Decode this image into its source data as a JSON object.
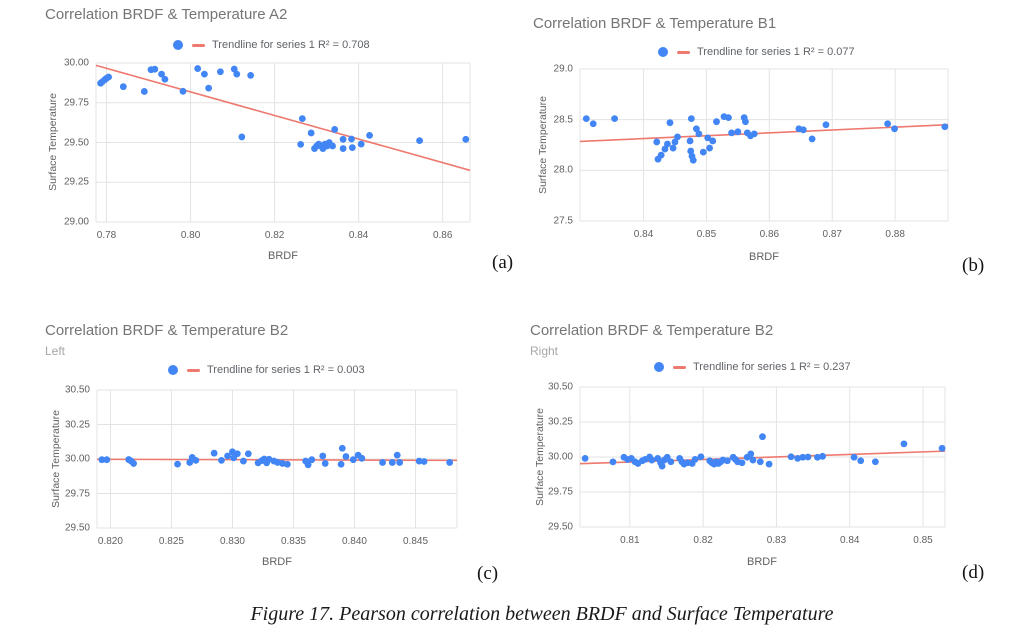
{
  "caption": "Figure 17. Pearson correlation between BRDF and Surface Temperature",
  "colors": {
    "point": "#4285f4",
    "trendline": "#ee796f",
    "grid": "#e3e3e3",
    "tick_text": "#616161",
    "title_text": "#757575",
    "subtitle_text": "#a6a6a6",
    "legend_text": "#5f6368",
    "caption_text": "#1a1a1a",
    "background": "#ffffff"
  },
  "chart_data": [
    {
      "type": "scatter",
      "panel_label": "(a)",
      "title": "Correlation BRDF & Temperature A2",
      "subtitle": "",
      "legend_label": "Trendline for series 1 R² = 0.708",
      "r2": 0.708,
      "xlabel": "BRDF",
      "ylabel": "Surface Temperature",
      "xlim": [
        0.7775,
        0.8665
      ],
      "ylim": [
        29.0,
        30.0
      ],
      "xtick_values": [
        0.78,
        0.8,
        0.82,
        0.84,
        0.86
      ],
      "xtick_labels": [
        "0.78",
        "0.80",
        "0.82",
        "0.84",
        "0.86"
      ],
      "ytick_values": [
        29.0,
        29.25,
        29.5,
        29.75,
        30.0
      ],
      "ytick_labels": [
        "29.00",
        "29.25",
        "29.50",
        "29.75",
        "30.00"
      ],
      "trendline": {
        "x1": 0.7775,
        "y1": 29.985,
        "x2": 0.8665,
        "y2": 29.325
      },
      "points": [
        [
          0.7786,
          29.873
        ],
        [
          0.779,
          29.882
        ],
        [
          0.7796,
          29.895
        ],
        [
          0.78,
          29.904
        ],
        [
          0.7805,
          29.912
        ],
        [
          0.784,
          29.851
        ],
        [
          0.789,
          29.821
        ],
        [
          0.7906,
          29.958
        ],
        [
          0.7915,
          29.961
        ],
        [
          0.7931,
          29.93
        ],
        [
          0.7939,
          29.898
        ],
        [
          0.7982,
          29.822
        ],
        [
          0.8017,
          29.965
        ],
        [
          0.8033,
          29.93
        ],
        [
          0.8043,
          29.842
        ],
        [
          0.8071,
          29.945
        ],
        [
          0.8104,
          29.962
        ],
        [
          0.811,
          29.93
        ],
        [
          0.8143,
          29.922
        ],
        [
          0.8122,
          29.535
        ],
        [
          0.8266,
          29.65
        ],
        [
          0.8287,
          29.56
        ],
        [
          0.8262,
          29.488
        ],
        [
          0.8295,
          29.462
        ],
        [
          0.83,
          29.478
        ],
        [
          0.8305,
          29.49
        ],
        [
          0.831,
          29.478
        ],
        [
          0.8315,
          29.462
        ],
        [
          0.832,
          29.49
        ],
        [
          0.8325,
          29.478
        ],
        [
          0.833,
          29.5
        ],
        [
          0.8338,
          29.478
        ],
        [
          0.8343,
          29.582
        ],
        [
          0.8363,
          29.52
        ],
        [
          0.8363,
          29.462
        ],
        [
          0.8383,
          29.522
        ],
        [
          0.8385,
          29.468
        ],
        [
          0.8406,
          29.49
        ],
        [
          0.8426,
          29.545
        ],
        [
          0.8545,
          29.512
        ],
        [
          0.8655,
          29.52
        ]
      ]
    },
    {
      "type": "scatter",
      "panel_label": "(b)",
      "title": "Correlation BRDF & Temperature B1",
      "subtitle": "",
      "legend_label": "Trendline for series 1 R² = 0.077",
      "r2": 0.077,
      "xlabel": "BRDF",
      "ylabel": "Surface Temperature",
      "xlim": [
        0.8299,
        0.8884
      ],
      "ylim": [
        27.5,
        29.0
      ],
      "xtick_values": [
        0.84,
        0.85,
        0.86,
        0.87,
        0.88
      ],
      "xtick_labels": [
        "0.84",
        "0.85",
        "0.86",
        "0.87",
        "0.88"
      ],
      "ytick_values": [
        27.5,
        28.0,
        28.5,
        29.0
      ],
      "ytick_labels": [
        "27.5",
        "28.0",
        "28.5",
        "29.0"
      ],
      "trendline": {
        "x1": 0.8299,
        "y1": 28.285,
        "x2": 0.8884,
        "y2": 28.45
      },
      "points": [
        [
          0.8309,
          28.51
        ],
        [
          0.832,
          28.46
        ],
        [
          0.8354,
          28.51
        ],
        [
          0.8421,
          28.28
        ],
        [
          0.8423,
          28.11
        ],
        [
          0.8428,
          28.15
        ],
        [
          0.8434,
          28.21
        ],
        [
          0.8438,
          28.26
        ],
        [
          0.8442,
          28.47
        ],
        [
          0.8447,
          28.22
        ],
        [
          0.845,
          28.28
        ],
        [
          0.8454,
          28.33
        ],
        [
          0.8476,
          28.51
        ],
        [
          0.8474,
          28.29
        ],
        [
          0.8475,
          28.19
        ],
        [
          0.8477,
          28.14
        ],
        [
          0.8479,
          28.1
        ],
        [
          0.8484,
          28.41
        ],
        [
          0.8488,
          28.36
        ],
        [
          0.8495,
          28.18
        ],
        [
          0.8502,
          28.32
        ],
        [
          0.8505,
          28.22
        ],
        [
          0.851,
          28.29
        ],
        [
          0.8516,
          28.48
        ],
        [
          0.8528,
          28.53
        ],
        [
          0.8535,
          28.52
        ],
        [
          0.854,
          28.37
        ],
        [
          0.855,
          28.38
        ],
        [
          0.856,
          28.52
        ],
        [
          0.8562,
          28.48
        ],
        [
          0.8565,
          28.37
        ],
        [
          0.857,
          28.34
        ],
        [
          0.8576,
          28.36
        ],
        [
          0.8647,
          28.41
        ],
        [
          0.8654,
          28.4
        ],
        [
          0.8668,
          28.31
        ],
        [
          0.869,
          28.45
        ],
        [
          0.8788,
          28.46
        ],
        [
          0.8799,
          28.41
        ],
        [
          0.8879,
          28.43
        ]
      ]
    },
    {
      "type": "scatter",
      "panel_label": "(c)",
      "title": "Correlation BRDF & Temperature B2",
      "subtitle": "Left",
      "legend_label": "Trendline for series 1 R² = 0.003",
      "r2": 0.003,
      "xlabel": "BRDF",
      "ylabel": "Surface Temperature",
      "xlim": [
        0.8189,
        0.8484
      ],
      "ylim": [
        29.5,
        30.5
      ],
      "xtick_values": [
        0.82,
        0.825,
        0.83,
        0.835,
        0.84,
        0.845
      ],
      "xtick_labels": [
        "0.820",
        "0.825",
        "0.830",
        "0.835",
        "0.840",
        "0.845"
      ],
      "ytick_values": [
        29.5,
        29.75,
        30.0,
        30.25,
        30.5
      ],
      "ytick_labels": [
        "29.50",
        "29.75",
        "30.00",
        "30.25",
        "30.50"
      ],
      "trendline": {
        "x1": 0.8189,
        "y1": 29.998,
        "x2": 0.8484,
        "y2": 29.99
      },
      "points": [
        [
          0.8193,
          29.995
        ],
        [
          0.8197,
          29.995
        ],
        [
          0.8215,
          29.996
        ],
        [
          0.8217,
          29.985
        ],
        [
          0.8219,
          29.968
        ],
        [
          0.8255,
          29.963
        ],
        [
          0.8265,
          29.975
        ],
        [
          0.8267,
          30.012
        ],
        [
          0.827,
          29.99
        ],
        [
          0.8285,
          30.042
        ],
        [
          0.8291,
          29.99
        ],
        [
          0.8296,
          30.022
        ],
        [
          0.83,
          30.052
        ],
        [
          0.8301,
          30.008
        ],
        [
          0.8304,
          30.038
        ],
        [
          0.8309,
          29.985
        ],
        [
          0.8313,
          30.038
        ],
        [
          0.8321,
          29.972
        ],
        [
          0.8324,
          29.988
        ],
        [
          0.8326,
          30.0
        ],
        [
          0.8328,
          29.972
        ],
        [
          0.833,
          29.998
        ],
        [
          0.8334,
          29.985
        ],
        [
          0.8337,
          29.975
        ],
        [
          0.8341,
          29.968
        ],
        [
          0.8345,
          29.962
        ],
        [
          0.836,
          29.985
        ],
        [
          0.8362,
          29.958
        ],
        [
          0.8365,
          29.995
        ],
        [
          0.8374,
          30.022
        ],
        [
          0.8376,
          29.968
        ],
        [
          0.839,
          30.078
        ],
        [
          0.8389,
          29.962
        ],
        [
          0.8393,
          30.018
        ],
        [
          0.8399,
          29.995
        ],
        [
          0.8403,
          30.028
        ],
        [
          0.8406,
          30.005
        ],
        [
          0.8423,
          29.975
        ],
        [
          0.8431,
          29.975
        ],
        [
          0.8435,
          30.028
        ],
        [
          0.8437,
          29.975
        ],
        [
          0.8453,
          29.985
        ],
        [
          0.8457,
          29.982
        ],
        [
          0.8478,
          29.975
        ]
      ]
    },
    {
      "type": "scatter",
      "panel_label": "(d)",
      "title": "Correlation BRDF & Temperature B2",
      "subtitle": "Right",
      "legend_label": "Trendline for series 1 R² = 0.237",
      "r2": 0.237,
      "xlabel": "BRDF",
      "ylabel": "Surface Temperature",
      "xlim": [
        0.8032,
        0.853
      ],
      "ylim": [
        29.5,
        30.5
      ],
      "xtick_values": [
        0.81,
        0.82,
        0.83,
        0.84,
        0.85
      ],
      "xtick_labels": [
        "0.81",
        "0.82",
        "0.83",
        "0.84",
        "0.85"
      ],
      "ytick_values": [
        29.5,
        29.75,
        30.0,
        30.25,
        30.5
      ],
      "ytick_labels": [
        "29.50",
        "29.75",
        "30.00",
        "30.25",
        "30.50"
      ],
      "trendline": {
        "x1": 0.8032,
        "y1": 29.952,
        "x2": 0.853,
        "y2": 30.042
      },
      "points": [
        [
          0.8039,
          29.99
        ],
        [
          0.8077,
          29.965
        ],
        [
          0.8092,
          29.998
        ],
        [
          0.8097,
          29.982
        ],
        [
          0.8102,
          29.99
        ],
        [
          0.8107,
          29.966
        ],
        [
          0.8111,
          29.954
        ],
        [
          0.8117,
          29.973
        ],
        [
          0.8121,
          29.983
        ],
        [
          0.8127,
          30.0
        ],
        [
          0.813,
          29.978
        ],
        [
          0.8138,
          29.99
        ],
        [
          0.8142,
          29.959
        ],
        [
          0.8144,
          29.935
        ],
        [
          0.8147,
          29.978
        ],
        [
          0.8151,
          29.998
        ],
        [
          0.8156,
          29.966
        ],
        [
          0.8168,
          29.99
        ],
        [
          0.8171,
          29.966
        ],
        [
          0.8174,
          29.949
        ],
        [
          0.8179,
          29.959
        ],
        [
          0.8185,
          29.954
        ],
        [
          0.8189,
          29.983
        ],
        [
          0.8197,
          30.002
        ],
        [
          0.8209,
          29.973
        ],
        [
          0.8212,
          29.959
        ],
        [
          0.8215,
          29.949
        ],
        [
          0.8218,
          29.966
        ],
        [
          0.8221,
          29.954
        ],
        [
          0.8224,
          29.966
        ],
        [
          0.8227,
          29.978
        ],
        [
          0.8233,
          29.973
        ],
        [
          0.8241,
          29.998
        ],
        [
          0.8244,
          29.983
        ],
        [
          0.8247,
          29.966
        ],
        [
          0.8253,
          29.959
        ],
        [
          0.826,
          29.998
        ],
        [
          0.8265,
          30.022
        ],
        [
          0.8268,
          29.978
        ],
        [
          0.8278,
          29.966
        ],
        [
          0.8281,
          30.145
        ],
        [
          0.829,
          29.949
        ],
        [
          0.832,
          30.002
        ],
        [
          0.8329,
          29.99
        ],
        [
          0.8336,
          29.998
        ],
        [
          0.8343,
          30.0
        ],
        [
          0.8356,
          29.998
        ],
        [
          0.8363,
          30.005
        ],
        [
          0.8406,
          29.998
        ],
        [
          0.8415,
          29.973
        ],
        [
          0.8435,
          29.966
        ],
        [
          0.8474,
          30.094
        ],
        [
          0.8526,
          30.062
        ]
      ]
    }
  ]
}
